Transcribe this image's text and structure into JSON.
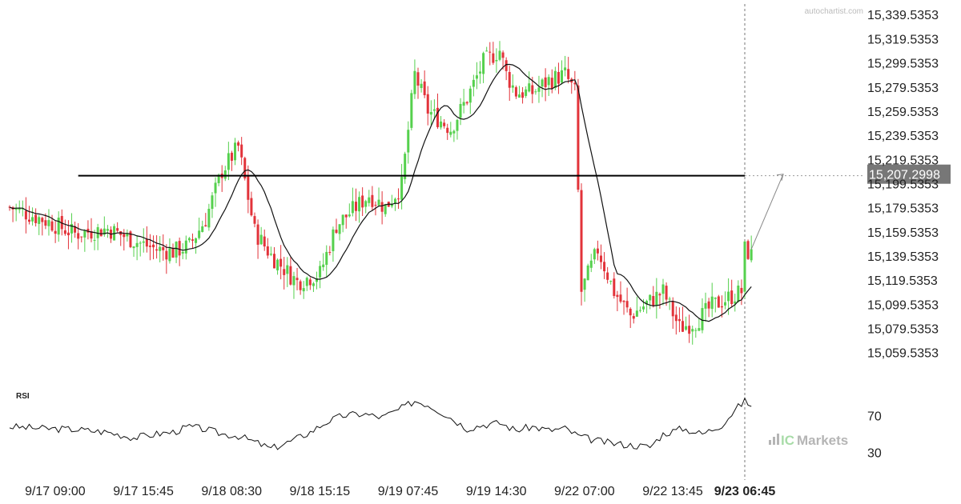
{
  "watermark": "autochartist.com",
  "brand": {
    "prefix": "IC",
    "suffix": "Markets"
  },
  "chart_data": {
    "type": "candlestick",
    "ylim": [
      15050,
      15345
    ],
    "y_ticks": [
      "15,339.5353",
      "15,319.5353",
      "15,299.5353",
      "15,279.5353",
      "15,259.5353",
      "15,239.5353",
      "15,219.5353",
      "15,199.5353",
      "15,179.5353",
      "15,159.5353",
      "15,139.5353",
      "15,119.5353",
      "15,099.5353",
      "15,079.5353",
      "15,059.5353"
    ],
    "x_labels": [
      {
        "text": "9/17 09:00",
        "index": 11,
        "bold": false
      },
      {
        "text": "9/17 15:45",
        "index": 38,
        "bold": false
      },
      {
        "text": "9/18 08:30",
        "index": 65,
        "bold": false
      },
      {
        "text": "9/18 15:15",
        "index": 92,
        "bold": false
      },
      {
        "text": "9/19 07:45",
        "index": 119,
        "bold": false
      },
      {
        "text": "9/19 14:30",
        "index": 146,
        "bold": false
      },
      {
        "text": "9/22 07:00",
        "index": 173,
        "bold": false
      },
      {
        "text": "9/22 13:45",
        "index": 200,
        "bold": false
      },
      {
        "text": "9/23 06:45",
        "index": 227,
        "bold": true
      }
    ],
    "resistance_level": {
      "value": 15206,
      "start_index": 21,
      "end_index": 229
    },
    "target_price": {
      "value": 15207.2998,
      "label": "15,207.2998"
    },
    "anchor_points": [
      [
        0,
        15180
      ],
      [
        10,
        15170
      ],
      [
        20,
        15158
      ],
      [
        30,
        15162
      ],
      [
        40,
        15150
      ],
      [
        45,
        15145
      ],
      [
        50,
        15143
      ],
      [
        55,
        15148
      ],
      [
        60,
        15170
      ],
      [
        65,
        15210
      ],
      [
        70,
        15230
      ],
      [
        75,
        15160
      ],
      [
        80,
        15140
      ],
      [
        88,
        15118
      ],
      [
        95,
        15125
      ],
      [
        100,
        15165
      ],
      [
        110,
        15190
      ],
      [
        115,
        15180
      ],
      [
        120,
        15198
      ],
      [
        124,
        15290
      ],
      [
        128,
        15260
      ],
      [
        135,
        15245
      ],
      [
        140,
        15270
      ],
      [
        145,
        15300
      ],
      [
        150,
        15310
      ],
      [
        152,
        15290
      ],
      [
        155,
        15275
      ],
      [
        160,
        15275
      ],
      [
        165,
        15285
      ],
      [
        170,
        15290
      ],
      [
        173,
        15275
      ],
      [
        175,
        15110
      ],
      [
        180,
        15145
      ],
      [
        185,
        15110
      ],
      [
        190,
        15090
      ],
      [
        195,
        15100
      ],
      [
        200,
        15110
      ],
      [
        205,
        15080
      ],
      [
        210,
        15085
      ],
      [
        215,
        15098
      ],
      [
        220,
        15105
      ],
      [
        224,
        15110
      ],
      [
        225,
        15145
      ],
      [
        227,
        15140
      ]
    ],
    "ma_period": 12,
    "rsi_ticks": [
      "70",
      "30"
    ],
    "rsi_label": "RSI",
    "rsi_anchor_points": [
      [
        0,
        58
      ],
      [
        10,
        56
      ],
      [
        20,
        55
      ],
      [
        30,
        52
      ],
      [
        38,
        46
      ],
      [
        45,
        50
      ],
      [
        50,
        52
      ],
      [
        55,
        58
      ],
      [
        60,
        55
      ],
      [
        65,
        50
      ],
      [
        70,
        48
      ],
      [
        76,
        40
      ],
      [
        80,
        34
      ],
      [
        86,
        42
      ],
      [
        92,
        52
      ],
      [
        97,
        63
      ],
      [
        102,
        70
      ],
      [
        108,
        72
      ],
      [
        114,
        68
      ],
      [
        120,
        78
      ],
      [
        124,
        86
      ],
      [
        128,
        82
      ],
      [
        134,
        70
      ],
      [
        140,
        56
      ],
      [
        145,
        60
      ],
      [
        150,
        62
      ],
      [
        155,
        54
      ],
      [
        160,
        58
      ],
      [
        165,
        54
      ],
      [
        170,
        56
      ],
      [
        174,
        48
      ],
      [
        178,
        44
      ],
      [
        184,
        40
      ],
      [
        190,
        38
      ],
      [
        196,
        36
      ],
      [
        200,
        50
      ],
      [
        206,
        56
      ],
      [
        212,
        50
      ],
      [
        218,
        60
      ],
      [
        222,
        76
      ],
      [
        225,
        86
      ],
      [
        227,
        80
      ]
    ]
  }
}
